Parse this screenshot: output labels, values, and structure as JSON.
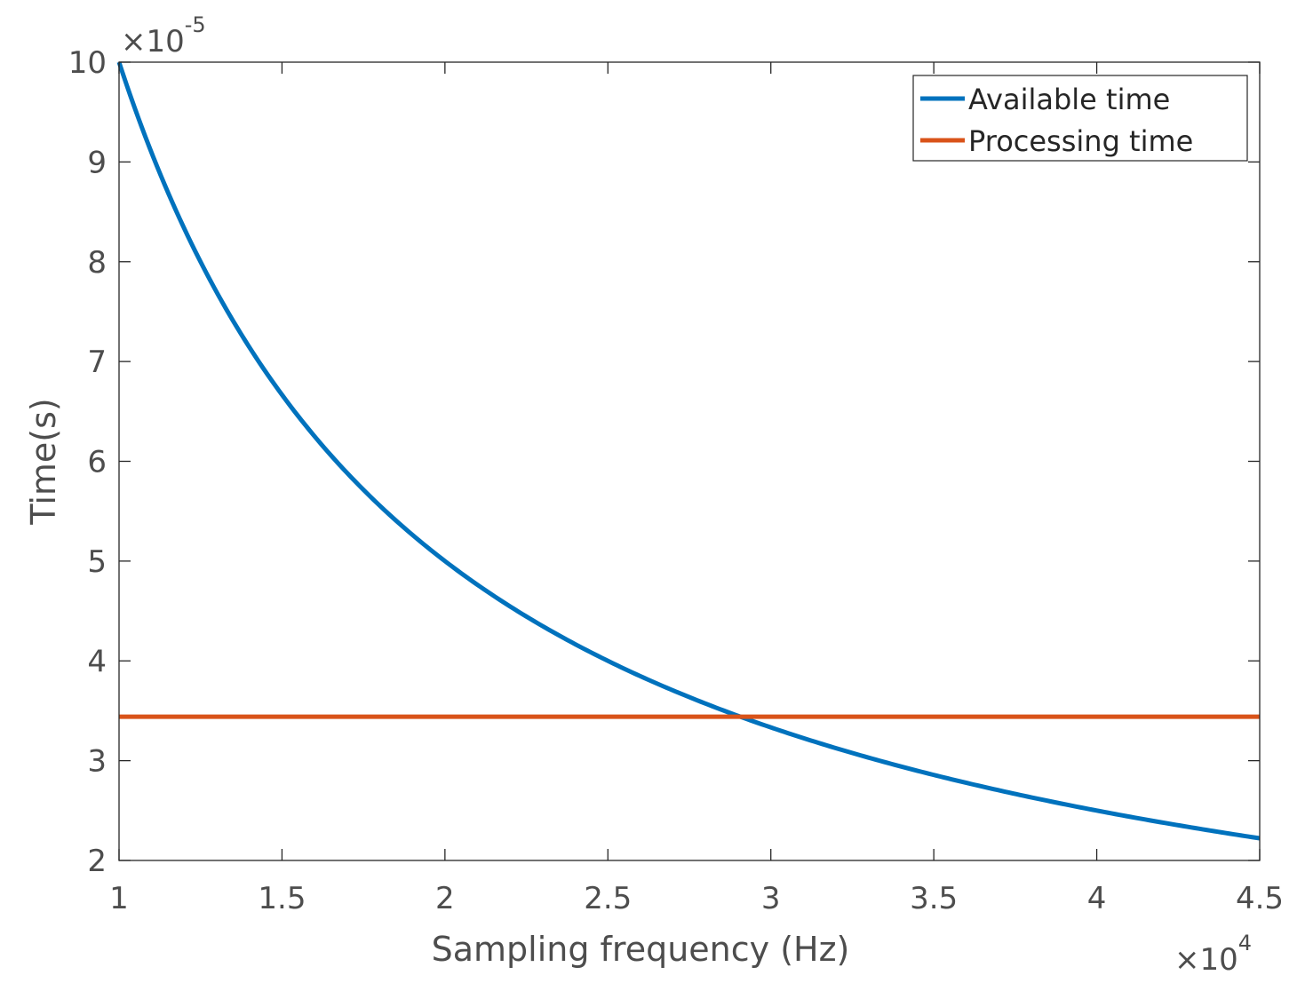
{
  "chart_data": {
    "type": "line",
    "title": "",
    "xlabel": "Sampling frequency (Hz)",
    "ylabel": "Time(s)",
    "x_multiplier_label": "×10",
    "x_multiplier_exp": "4",
    "y_multiplier_label": "×10",
    "y_multiplier_exp": "-5",
    "xlim": [
      1,
      4.5
    ],
    "ylim": [
      2,
      10
    ],
    "xticks": [
      1,
      1.5,
      2,
      2.5,
      3,
      3.5,
      4,
      4.5
    ],
    "xtick_labels": [
      "1",
      "1.5",
      "2",
      "2.5",
      "3",
      "3.5",
      "4",
      "4.5"
    ],
    "yticks": [
      2,
      3,
      4,
      5,
      6,
      7,
      8,
      9,
      10
    ],
    "ytick_labels": [
      "2",
      "3",
      "4",
      "5",
      "6",
      "7",
      "8",
      "9",
      "10"
    ],
    "grid": false,
    "legend_position": "top-right",
    "series": [
      {
        "name": "Available time",
        "color": "#0072BD",
        "function": "y = 10 / x (x in units of 1e4 Hz, y in units of 1e-5 s)",
        "x": [
          1,
          1.1,
          1.2,
          1.3,
          1.4,
          1.5,
          1.6,
          1.7,
          1.8,
          1.9,
          2,
          2.1,
          2.2,
          2.3,
          2.4,
          2.5,
          2.6,
          2.7,
          2.8,
          2.9,
          3,
          3.1,
          3.2,
          3.3,
          3.4,
          3.5,
          3.6,
          3.7,
          3.8,
          3.9,
          4,
          4.1,
          4.2,
          4.3,
          4.4,
          4.5
        ],
        "values": [
          10,
          9.0909,
          8.3333,
          7.6923,
          7.1429,
          6.6667,
          6.25,
          5.8824,
          5.5556,
          5.2632,
          5,
          4.7619,
          4.5455,
          4.3478,
          4.1667,
          4,
          3.8462,
          3.7037,
          3.5714,
          3.4483,
          3.3333,
          3.2258,
          3.125,
          3.0303,
          2.9412,
          2.8571,
          2.7778,
          2.7027,
          2.6316,
          2.5641,
          2.5,
          2.439,
          2.381,
          2.3256,
          2.2727,
          2.2222
        ]
      },
      {
        "name": "Processing time",
        "color": "#D95319",
        "x": [
          1,
          4.5
        ],
        "values": [
          3.44,
          3.44
        ]
      }
    ]
  }
}
